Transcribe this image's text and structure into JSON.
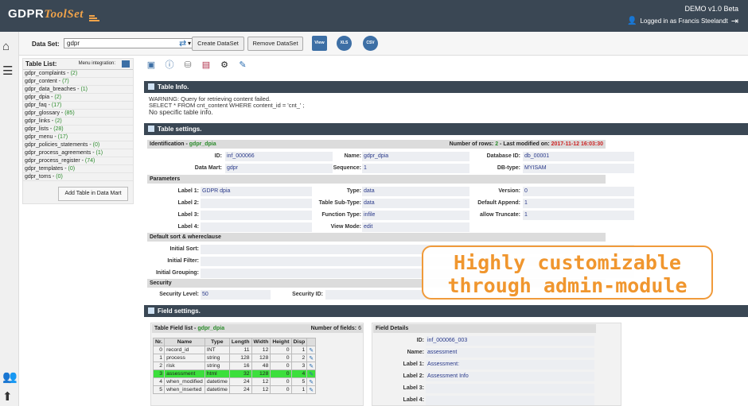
{
  "header": {
    "logo_main": "GDPR",
    "logo_sub": "ToolSet",
    "version": "DEMO v1.0 Beta",
    "logged_in": "Logged in as Francis Steelandt"
  },
  "dataset": {
    "label": "Data Set:",
    "selected": "gdpr",
    "create_label": "Create DataSet",
    "remove_label": "Remove DataSet",
    "view_label": "View",
    "xls_label": "XLS",
    "csv_label": "CSV"
  },
  "table_list": {
    "title": "Table List:",
    "menu_integration": "Menu integration:",
    "items": [
      {
        "name": "gdpr_complaints - ",
        "count": "(2)"
      },
      {
        "name": "gdpr_content - ",
        "count": "(7)"
      },
      {
        "name": "gdpr_data_breaches - ",
        "count": "(1)"
      },
      {
        "name": "gdpr_dpia - ",
        "count": "(2)"
      },
      {
        "name": "gdpr_faq - ",
        "count": "(17)"
      },
      {
        "name": "gdpr_glossary - ",
        "count": "(85)"
      },
      {
        "name": "gdpr_links - ",
        "count": "(2)"
      },
      {
        "name": "gdpr_lists - ",
        "count": "(28)"
      },
      {
        "name": "gdpr_menu - ",
        "count": "(17)"
      },
      {
        "name": "gdpr_policies_statements - ",
        "count": "(0)"
      },
      {
        "name": "gdpr_process_agreements - ",
        "count": "(1)"
      },
      {
        "name": "gdpr_process_register - ",
        "count": "(74)"
      },
      {
        "name": "gdpr_templates - ",
        "count": "(0)"
      },
      {
        "name": "gdpr_toms - ",
        "count": "(0)"
      }
    ],
    "add_button": "Add Table in Data Mart"
  },
  "table_info": {
    "title": "Table Info.",
    "warning": "WARNING: Query for retrieving content failed.",
    "query": "SELECT * FROM cnt_content WHERE content_id = 'cnt_' ;",
    "note": "No specific table info."
  },
  "table_settings": {
    "title": "Table settings.",
    "identification": "Identification - ",
    "ident_name": "gdpr_dpia",
    "rows_label": "Number of rows: ",
    "rows_value": "2",
    "modified_label": " - Last modified on: ",
    "modified_value": "2017-11-12 16:03:30",
    "id_label": "ID:",
    "id_value": "inf_000066",
    "name_label": "Name:",
    "name_value": "gdpr_dpia",
    "dbid_label": "Database ID:",
    "dbid_value": "db_00001",
    "datamart_label": "Data Mart:",
    "datamart_value": "gdpr",
    "sequence_label": "Sequence:",
    "sequence_value": "1",
    "dbtype_label": "DB-type:",
    "dbtype_value": "MYISAM",
    "parameters": "Parameters",
    "label1": "Label 1:",
    "label1_value": "GDPR dpia",
    "type_label": "Type:",
    "type_value": "data",
    "version_label": "Version:",
    "version_value": "0",
    "label2": "Label 2:",
    "subtype_label": "Table Sub-Type:",
    "subtype_value": "data",
    "defappend_label": "Default Append:",
    "defappend_value": "1",
    "label3": "Label 3:",
    "functype_label": "Function Type:",
    "functype_value": "infile",
    "allowtrunc_label": "allow Truncate:",
    "allowtrunc_value": "1",
    "label4": "Label 4:",
    "viewmode_label": "View Mode:",
    "viewmode_value": "edit",
    "default_sort": "Default sort & whereclause",
    "initial_sort": "Initial Sort:",
    "initial_filter": "Initial Filter:",
    "initial_grouping": "Initial Grouping:",
    "security": "Security",
    "seclevel_label": "Security Level:",
    "seclevel_value": "50",
    "secid_label": "Security ID:"
  },
  "callout": {
    "line1": "Highly customizable",
    "line2": "through admin-module"
  },
  "field_settings": {
    "title": "Field settings.",
    "list_label": "Table Field list - ",
    "list_name": "gdpr_dpia",
    "fields_label": "Number of fields: ",
    "fields_value": "6",
    "columns": [
      "Nr.",
      "Name",
      "Type",
      "Length",
      "Width",
      "Height",
      "Disp"
    ],
    "rows": [
      [
        "0",
        "record_id",
        "INT",
        "11",
        "12",
        "0",
        "1"
      ],
      [
        "1",
        "process",
        "string",
        "128",
        "128",
        "0",
        "2"
      ],
      [
        "2",
        "risk",
        "string",
        "16",
        "48",
        "0",
        "3"
      ],
      [
        "3",
        "assessment",
        "html",
        "32",
        "128",
        "0",
        "4"
      ],
      [
        "4",
        "when_modified",
        "datetime",
        "24",
        "12",
        "0",
        "5"
      ],
      [
        "5",
        "when_inserted",
        "datetime",
        "24",
        "12",
        "0",
        "1"
      ]
    ],
    "details_title": "Field Details",
    "d_id_label": "ID:",
    "d_id_value": "inf_000066_003",
    "d_name_label": "Name:",
    "d_name_value": "assessment",
    "d_l1_label": "Label 1:",
    "d_l1_value": "Assessment:",
    "d_l2_label": "Label 2:",
    "d_l2_value": "Assessment Info",
    "d_l3_label": "Label 3:",
    "d_l4_label": "Label 4:"
  }
}
